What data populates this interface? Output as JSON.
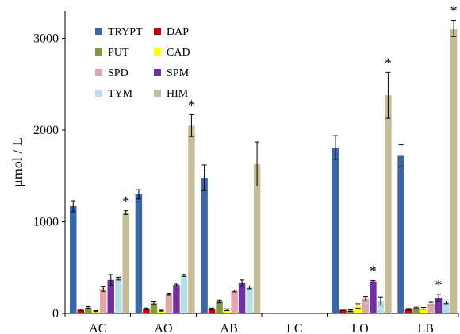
{
  "chart_data": {
    "type": "bar",
    "title": "",
    "xlabel": "",
    "ylabel": "μmol / L",
    "ylim": [
      0,
      3300
    ],
    "yticks": [
      0,
      1000,
      2000,
      3000
    ],
    "grid": false,
    "legend_position": "top-left",
    "categories": [
      "AC",
      "AO",
      "AB",
      "LC",
      "LO",
      "LB"
    ],
    "series": [
      {
        "name": "TRYPT",
        "color": "#3b67a8",
        "values": [
          1170,
          1300,
          1480,
          0,
          1810,
          1720
        ],
        "errors": [
          60,
          50,
          140,
          0,
          130,
          120
        ],
        "significant": [
          false,
          false,
          false,
          false,
          false,
          false
        ]
      },
      {
        "name": "DAP",
        "color": "#c00000",
        "values": [
          40,
          50,
          50,
          0,
          40,
          45
        ],
        "errors": [
          8,
          8,
          8,
          0,
          8,
          8
        ],
        "significant": [
          false,
          false,
          false,
          false,
          false,
          false
        ]
      },
      {
        "name": "PUT",
        "color": "#7f9a3d",
        "values": [
          65,
          110,
          130,
          0,
          30,
          60
        ],
        "errors": [
          10,
          15,
          15,
          0,
          8,
          8
        ],
        "significant": [
          false,
          false,
          false,
          false,
          false,
          false
        ]
      },
      {
        "name": "CAD",
        "color": "#ffff00",
        "values": [
          25,
          30,
          40,
          0,
          80,
          55
        ],
        "errors": [
          5,
          5,
          10,
          0,
          25,
          10
        ],
        "significant": [
          false,
          false,
          false,
          false,
          false,
          false
        ]
      },
      {
        "name": "SPD",
        "color": "#e0a8a8",
        "values": [
          265,
          210,
          245,
          0,
          160,
          105
        ],
        "errors": [
          25,
          10,
          10,
          0,
          25,
          15
        ],
        "significant": [
          false,
          false,
          false,
          false,
          false,
          false
        ]
      },
      {
        "name": "SPM",
        "color": "#7030a0",
        "values": [
          365,
          310,
          330,
          0,
          350,
          170
        ],
        "errors": [
          60,
          10,
          35,
          0,
          10,
          40
        ],
        "significant": [
          false,
          false,
          false,
          false,
          true,
          true
        ]
      },
      {
        "name": "TYM",
        "color": "#b7dee8",
        "values": [
          380,
          415,
          285,
          0,
          135,
          120
        ],
        "errors": [
          15,
          10,
          15,
          0,
          45,
          15
        ],
        "significant": [
          false,
          false,
          false,
          false,
          false,
          false
        ]
      },
      {
        "name": "HIM",
        "color": "#c4bd97",
        "values": [
          1100,
          2050,
          1630,
          0,
          2380,
          3110
        ],
        "errors": [
          20,
          120,
          240,
          0,
          250,
          90
        ],
        "significant": [
          true,
          true,
          false,
          false,
          true,
          true
        ]
      }
    ],
    "significance_marker": "*"
  }
}
